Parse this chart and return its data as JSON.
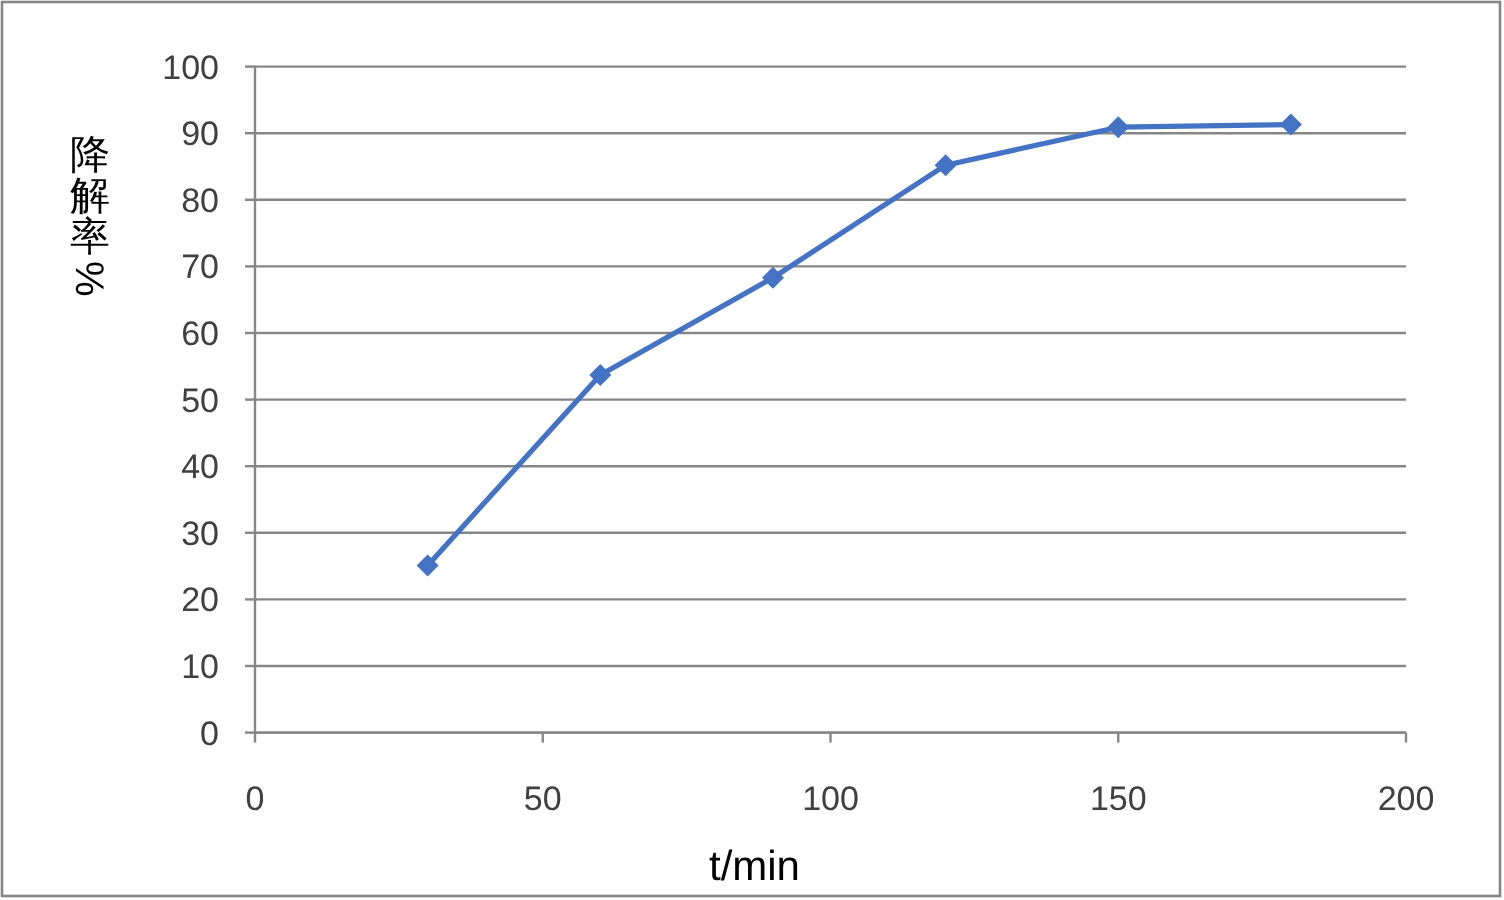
{
  "chart_data": {
    "type": "line",
    "xlabel": "t/min",
    "ylabel": "降解率%",
    "x": [
      30,
      60,
      90,
      120,
      150,
      180
    ],
    "series": [
      {
        "color": "#4472c4",
        "values": [
          25.1,
          53.7,
          68.3,
          85.2,
          90.9,
          91.3
        ]
      }
    ],
    "xlim": [
      0,
      200
    ],
    "xticks": [
      0,
      50,
      100,
      150,
      200
    ],
    "ylim": [
      0,
      100
    ],
    "yticks": [
      0,
      10,
      20,
      30,
      40,
      50,
      60,
      70,
      80,
      90,
      100
    ],
    "grid": "y",
    "marker": "diamond",
    "line_style": "solid"
  }
}
